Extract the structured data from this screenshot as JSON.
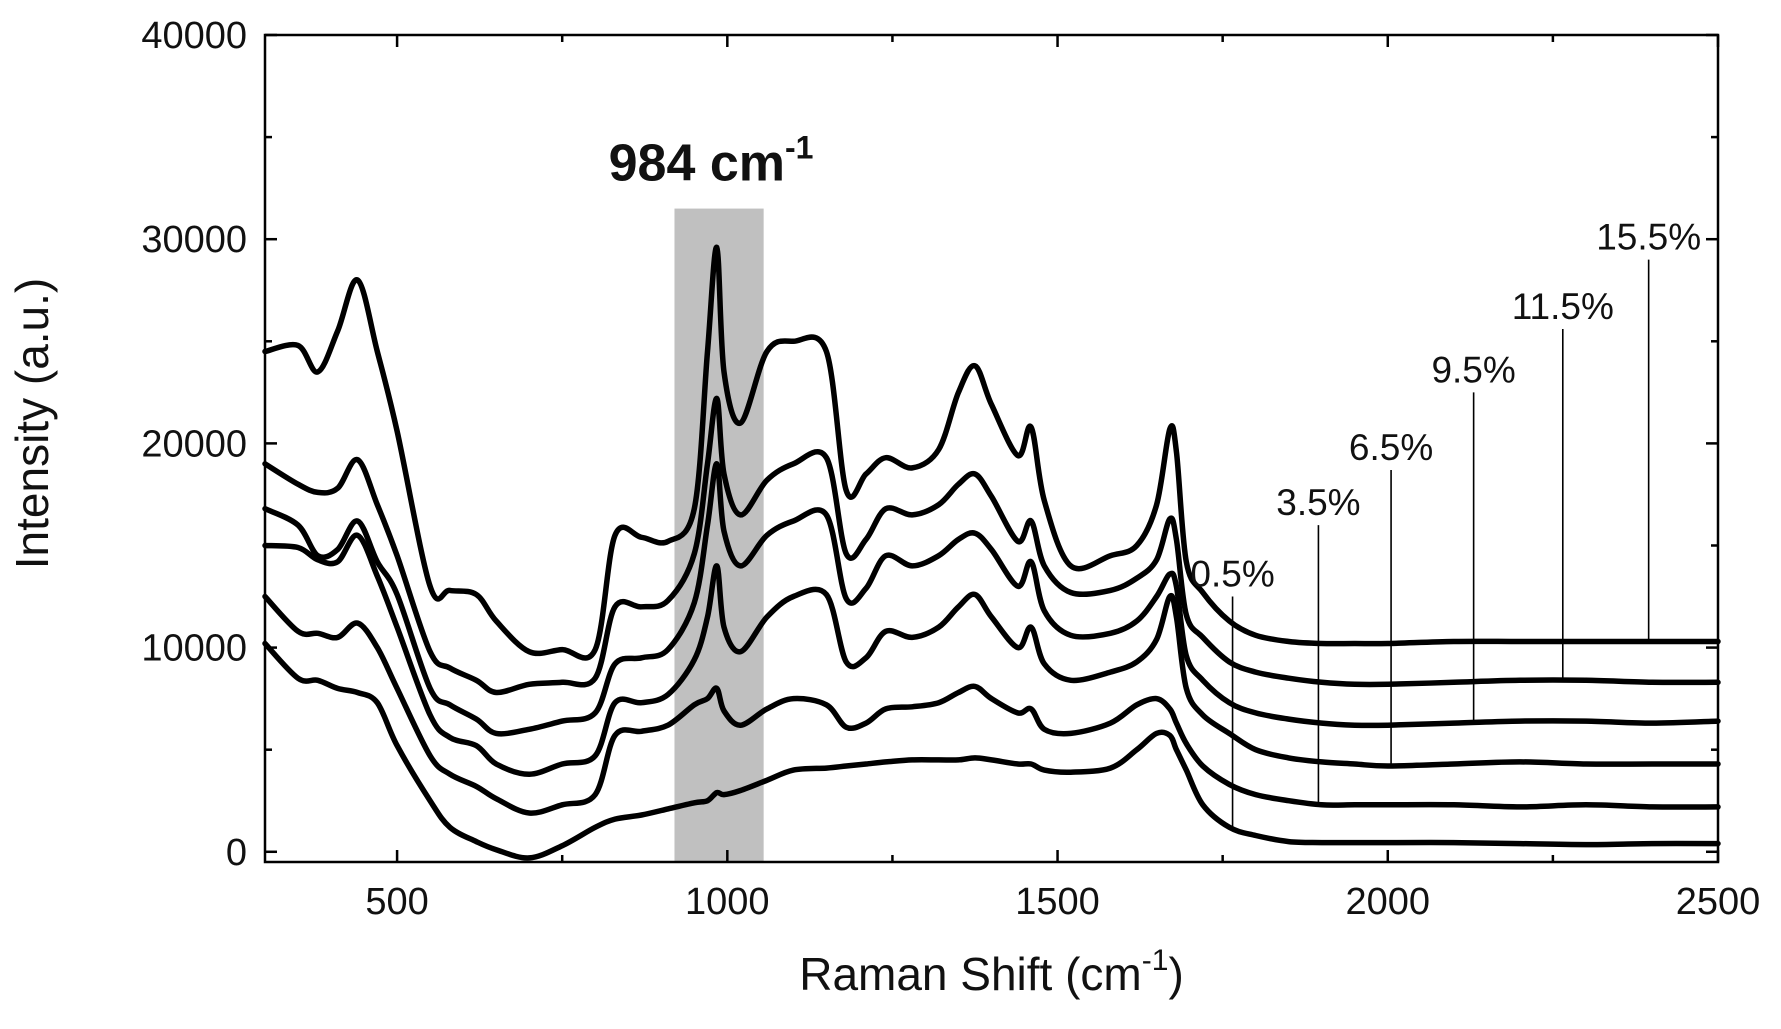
{
  "chart_data": {
    "type": "line",
    "title": "",
    "xlabel": "Raman Shift (cm",
    "xlabel_sup": "-1",
    "xlabel_close": ")",
    "ylabel": "Intensity (a.u.)",
    "xlim": [
      300,
      2500
    ],
    "ylim": [
      -500,
      40000
    ],
    "x_ticks": [
      500,
      1000,
      1500,
      2000,
      2500
    ],
    "y_ticks": [
      0,
      10000,
      20000,
      30000,
      40000
    ],
    "x_tick_labels": [
      "500",
      "1000",
      "1500",
      "2000",
      "2500"
    ],
    "y_tick_labels": [
      "0",
      "10000",
      "20000",
      "30000",
      "40000"
    ],
    "annotation": {
      "text": "984 cm",
      "sup": "-1",
      "band_start": 920,
      "band_end": 1055,
      "band_top": 31500,
      "band_color": "#c0c0c0"
    },
    "x": [
      300,
      350,
      380,
      410,
      440,
      470,
      500,
      550,
      580,
      620,
      650,
      700,
      750,
      800,
      830,
      870,
      910,
      950,
      970,
      984,
      995,
      1020,
      1060,
      1100,
      1150,
      1180,
      1210,
      1240,
      1280,
      1320,
      1350,
      1375,
      1400,
      1440,
      1460,
      1480,
      1520,
      1580,
      1620,
      1650,
      1670,
      1680,
      1695,
      1720,
      1760,
      1800,
      1850,
      1900,
      1950,
      2000,
      2100,
      2200,
      2300,
      2400,
      2500
    ],
    "series": [
      {
        "name": "0.5%",
        "label_x": 1765,
        "label_y": 12500,
        "values": [
          10200,
          8500,
          8400,
          8000,
          7800,
          7300,
          5200,
          2500,
          1200,
          500,
          100,
          -300,
          300,
          1200,
          1600,
          1800,
          2100,
          2400,
          2500,
          2900,
          2800,
          3000,
          3500,
          4000,
          4100,
          4200,
          4300,
          4400,
          4500,
          4500,
          4500,
          4600,
          4500,
          4300,
          4300,
          4000,
          3900,
          4100,
          5000,
          5800,
          5700,
          5000,
          4000,
          2300,
          1200,
          800,
          500,
          450,
          450,
          450,
          450,
          400,
          350,
          400,
          400
        ]
      },
      {
        "name": "3.5%",
        "label_x": 1895,
        "label_y": 16000,
        "values": [
          12500,
          10800,
          10700,
          10500,
          11200,
          10000,
          8000,
          4700,
          3800,
          3200,
          2600,
          1900,
          2300,
          2800,
          5700,
          5900,
          6200,
          7200,
          7500,
          8000,
          6900,
          6200,
          7000,
          7500,
          7200,
          6100,
          6300,
          7000,
          7100,
          7300,
          7800,
          8100,
          7500,
          6800,
          7000,
          6000,
          5800,
          6300,
          7200,
          7500,
          7000,
          6300,
          5300,
          4200,
          3300,
          2800,
          2500,
          2300,
          2300,
          2300,
          2300,
          2200,
          2300,
          2200,
          2200
        ]
      },
      {
        "name": "6.5%",
        "label_x": 2005,
        "label_y": 18700,
        "values": [
          15000,
          14900,
          14300,
          14200,
          15500,
          13500,
          11000,
          6700,
          5600,
          5200,
          4300,
          3800,
          4300,
          4700,
          7300,
          7300,
          7700,
          9400,
          11500,
          14000,
          11000,
          9800,
          11500,
          12500,
          12600,
          9300,
          9500,
          10800,
          10500,
          11000,
          12000,
          12600,
          11500,
          10000,
          11000,
          9200,
          8400,
          8800,
          9300,
          10400,
          12500,
          11500,
          8000,
          6700,
          5800,
          5000,
          4600,
          4400,
          4300,
          4200,
          4300,
          4400,
          4300,
          4300,
          4300
        ]
      },
      {
        "name": "9.5%",
        "label_x": 2130,
        "label_y": 22500,
        "values": [
          16800,
          16000,
          14500,
          14800,
          16200,
          14200,
          12600,
          8000,
          7200,
          6500,
          5800,
          6000,
          6400,
          6800,
          9200,
          9500,
          9900,
          12200,
          16000,
          19000,
          15700,
          14000,
          15500,
          16200,
          16500,
          12400,
          12900,
          14500,
          14000,
          14500,
          15300,
          15600,
          14800,
          13000,
          14200,
          11800,
          10600,
          10700,
          11300,
          12500,
          13600,
          13000,
          9600,
          8400,
          7300,
          6800,
          6500,
          6300,
          6200,
          6200,
          6300,
          6400,
          6400,
          6300,
          6400
        ]
      },
      {
        "name": "11.5%",
        "label_x": 2265,
        "label_y": 25600,
        "values": [
          19000,
          18000,
          17600,
          17800,
          19200,
          17000,
          14500,
          9800,
          9000,
          8400,
          7800,
          8200,
          8300,
          8500,
          12000,
          12000,
          12300,
          14600,
          19000,
          22200,
          18500,
          16500,
          18200,
          19000,
          19300,
          14600,
          15300,
          16800,
          16500,
          17000,
          18000,
          18500,
          17400,
          15200,
          16200,
          14000,
          12700,
          12800,
          13400,
          14300,
          16300,
          15300,
          11600,
          10500,
          9300,
          8800,
          8500,
          8300,
          8200,
          8200,
          8300,
          8400,
          8400,
          8300,
          8300
        ]
      },
      {
        "name": "15.5%",
        "label_x": 2395,
        "label_y": 29000,
        "values": [
          24500,
          24800,
          23500,
          25500,
          28000,
          24500,
          20600,
          13000,
          12800,
          12600,
          11300,
          9800,
          9900,
          9900,
          15500,
          15400,
          15200,
          16800,
          24500,
          29600,
          23500,
          21000,
          24500,
          25000,
          24500,
          17700,
          18500,
          19300,
          18800,
          19700,
          22500,
          23800,
          21900,
          19400,
          20800,
          17200,
          14000,
          14500,
          15000,
          17000,
          20700,
          19600,
          14200,
          12700,
          11300,
          10600,
          10300,
          10200,
          10200,
          10200,
          10300,
          10300,
          10300,
          10300,
          10300
        ]
      }
    ]
  }
}
